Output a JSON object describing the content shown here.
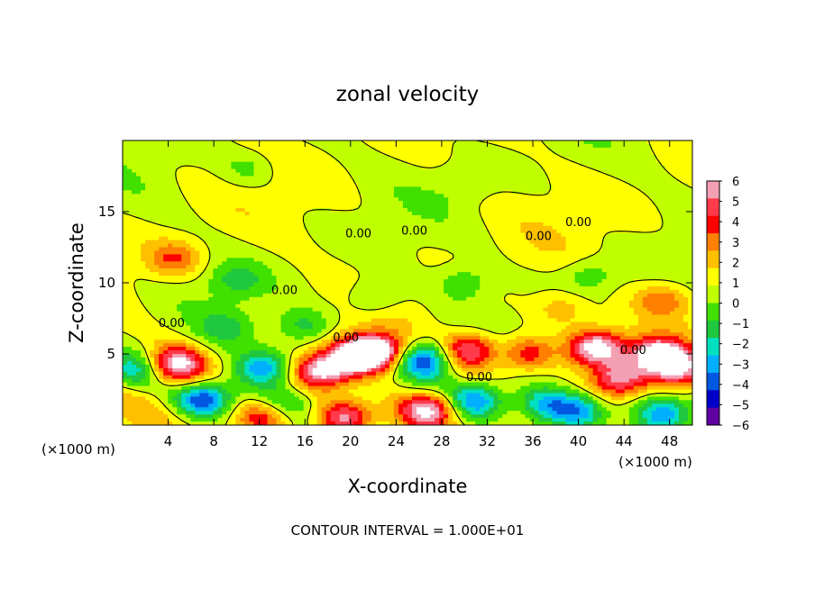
{
  "chart_data": {
    "type": "heatmap",
    "title": "zonal velocity",
    "xlabel": "X-coordinate",
    "ylabel": "Z-coordinate",
    "x_unit_left": "(×1000 m)",
    "x_unit_right": "(×1000 m)",
    "xlim": [
      0,
      50
    ],
    "ylim": [
      0,
      20
    ],
    "x_ticks": [
      4,
      8,
      12,
      16,
      20,
      24,
      28,
      32,
      36,
      40,
      44,
      48
    ],
    "y_ticks": [
      5,
      10,
      15
    ],
    "colorbar": {
      "ticks": [
        6,
        5,
        4,
        3,
        2,
        1,
        0,
        -1,
        -2,
        -3,
        -4,
        -5,
        -6
      ],
      "colors": [
        "#f4a0b4",
        "#ff3a4a",
        "#ff0000",
        "#ff8000",
        "#ffc000",
        "#ffff00",
        "#c0ff00",
        "#40e000",
        "#20c840",
        "#00e0c0",
        "#00b0ff",
        "#0058e0",
        "#0000c8",
        "#6000a0"
      ]
    },
    "contour_labels": [
      {
        "text": "0.00",
        "x": 4.3,
        "y": 6.9
      },
      {
        "text": "0.00",
        "x": 14.2,
        "y": 9.2
      },
      {
        "text": "0.00",
        "x": 19.6,
        "y": 5.9
      },
      {
        "text": "0.00",
        "x": 20.7,
        "y": 13.2
      },
      {
        "text": "0.00",
        "x": 25.6,
        "y": 13.4
      },
      {
        "text": "0.00",
        "x": 31.3,
        "y": 3.1
      },
      {
        "text": "0.00",
        "x": 36.5,
        "y": 13.0
      },
      {
        "text": "0.00",
        "x": 40.0,
        "y": 14.0
      },
      {
        "text": "0.00",
        "x": 44.8,
        "y": 5.0
      }
    ],
    "blobs": [
      {
        "x": 4.7,
        "y": 4.2,
        "v": 6.5
      },
      {
        "x": 7.2,
        "y": 1.8,
        "v": -6.2
      },
      {
        "x": 12.3,
        "y": 4.0,
        "v": -5.0
      },
      {
        "x": 12.5,
        "y": 0.6,
        "v": 5.0
      },
      {
        "x": 14.0,
        "y": 1.5,
        "v": -3.0
      },
      {
        "x": 17.5,
        "y": 3.8,
        "v": 6.5
      },
      {
        "x": 20.5,
        "y": 4.8,
        "v": 7.0
      },
      {
        "x": 22.5,
        "y": 5.2,
        "v": 6.5
      },
      {
        "x": 19.5,
        "y": 0.5,
        "v": 6.0
      },
      {
        "x": 26.5,
        "y": 4.6,
        "v": -6.0
      },
      {
        "x": 26.8,
        "y": 1.1,
        "v": 6.5
      },
      {
        "x": 30.5,
        "y": 5.3,
        "v": 5.5
      },
      {
        "x": 31.2,
        "y": 1.8,
        "v": -5.0
      },
      {
        "x": 35.5,
        "y": 5.0,
        "v": 4.5
      },
      {
        "x": 37.0,
        "y": 1.5,
        "v": -4.0
      },
      {
        "x": 41.5,
        "y": 5.4,
        "v": 7.0
      },
      {
        "x": 43.5,
        "y": 3.2,
        "v": 5.5
      },
      {
        "x": 40.0,
        "y": 1.0,
        "v": -5.0
      },
      {
        "x": 47.0,
        "y": 5.0,
        "v": 6.5
      },
      {
        "x": 49.0,
        "y": 4.0,
        "v": 5.5
      },
      {
        "x": 47.5,
        "y": 0.8,
        "v": -5.0
      },
      {
        "x": 1.0,
        "y": 3.8,
        "v": -3.0
      },
      {
        "x": 9.0,
        "y": 6.8,
        "v": -2.0
      },
      {
        "x": 16.0,
        "y": 7.0,
        "v": -2.5
      },
      {
        "x": 38.5,
        "y": 8.2,
        "v": 2.0
      },
      {
        "x": 47.5,
        "y": 8.8,
        "v": 3.0
      },
      {
        "x": 4.5,
        "y": 11.7,
        "v": 3.0
      },
      {
        "x": 10.0,
        "y": 10.2,
        "v": -2.0
      },
      {
        "x": 22.0,
        "y": 9.0,
        "v": -2.0
      },
      {
        "x": 30.0,
        "y": 10.0,
        "v": -2.0
      },
      {
        "x": 41.0,
        "y": 10.5,
        "v": -2.0
      },
      {
        "x": 11.0,
        "y": 18.0,
        "v": -1.5
      },
      {
        "x": 30.0,
        "y": 17.0,
        "v": -1.0
      }
    ]
  },
  "contour_interval_text": "CONTOUR INTERVAL = 1.000E+01"
}
